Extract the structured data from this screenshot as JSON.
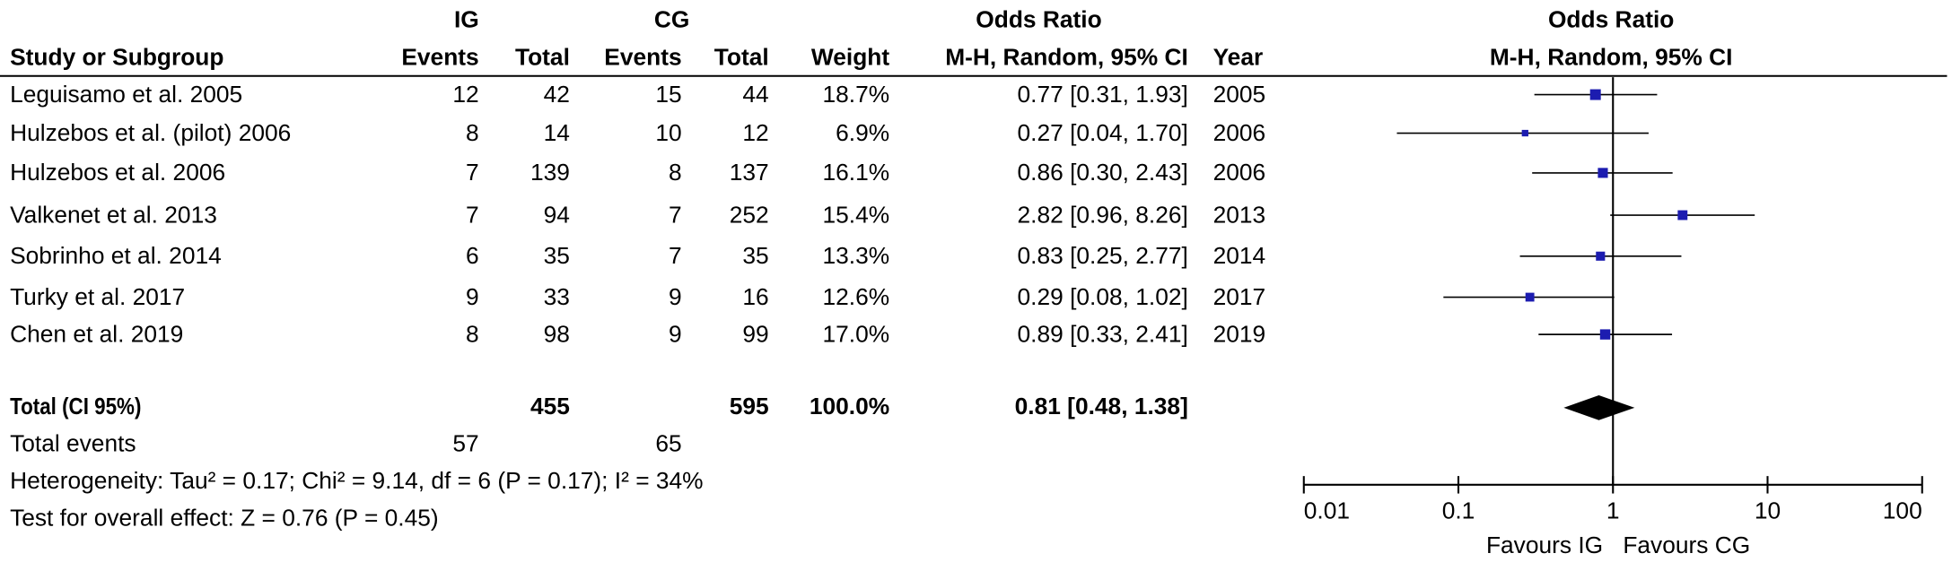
{
  "table": {
    "group_headers": {
      "ig": "IG",
      "cg": "CG",
      "or": "Odds Ratio"
    },
    "columns": [
      "Study or Subgroup",
      "Events",
      "Total",
      "Events",
      "Total",
      "Weight",
      "M-H, Random, 95% CI",
      "Year"
    ],
    "rows": [
      [
        "Leguisamo et al. 2005",
        12,
        42,
        15,
        44,
        "18.7%",
        "0.77 [0.31, 1.93]",
        2005
      ],
      [
        "Hulzebos et al. (pilot) 2006",
        8,
        14,
        10,
        12,
        "6.9%",
        "0.27 [0.04, 1.70]",
        2006
      ],
      [
        "Hulzebos et al. 2006",
        7,
        139,
        8,
        137,
        "16.1%",
        "0.86 [0.30, 2.43]",
        2006
      ],
      [
        "Valkenet et al. 2013",
        7,
        94,
        7,
        252,
        "15.4%",
        "2.82 [0.96, 8.26]",
        2013
      ],
      [
        "Sobrinho et al. 2014",
        6,
        35,
        7,
        35,
        "13.3%",
        "0.83 [0.25, 2.77]",
        2014
      ],
      [
        "Turky et al. 2017",
        9,
        33,
        9,
        16,
        "12.6%",
        "0.29 [0.08, 1.02]",
        2017
      ],
      [
        "Chen et al. 2019",
        8,
        98,
        9,
        99,
        "17.0%",
        "0.89 [0.33, 2.41]",
        2019
      ]
    ],
    "total": {
      "label": "Total (CI 95%)",
      "ig_total": 455,
      "cg_total": 595,
      "weight": "100.0%",
      "ci": "0.81 [0.48, 1.38]"
    },
    "events": {
      "label": "Total events",
      "ig": 57,
      "cg": 65
    },
    "heterogeneity": "Heterogeneity: Tau² = 0.17; Chi² = 9.14, df = 6 (P = 0.17); I² = 34%",
    "overall_effect": "Test for overall effect: Z = 0.76 (P = 0.45)"
  },
  "chart_data": {
    "type": "forest",
    "title": "Odds Ratio",
    "subtitle": "M-H, Random, 95% CI",
    "log_scale": true,
    "xlim": [
      0.01,
      100
    ],
    "xticks": [
      0.01,
      0.1,
      1,
      10,
      100
    ],
    "reference": 1,
    "x_label_left": "Favours IG",
    "x_label_right": "Favours CG",
    "color": "#1c1cb0",
    "estimates": [
      0.77,
      0.27,
      0.86,
      2.82,
      0.83,
      0.29,
      0.89
    ],
    "lower": [
      0.31,
      0.04,
      0.3,
      0.96,
      0.25,
      0.08,
      0.33
    ],
    "upper": [
      1.93,
      1.7,
      2.43,
      8.26,
      2.77,
      1.02,
      2.41
    ],
    "weights": [
      18.7,
      6.9,
      16.1,
      15.4,
      13.3,
      12.6,
      17.0
    ],
    "total": {
      "estimate": 0.81,
      "lower": 0.48,
      "upper": 1.38
    }
  }
}
